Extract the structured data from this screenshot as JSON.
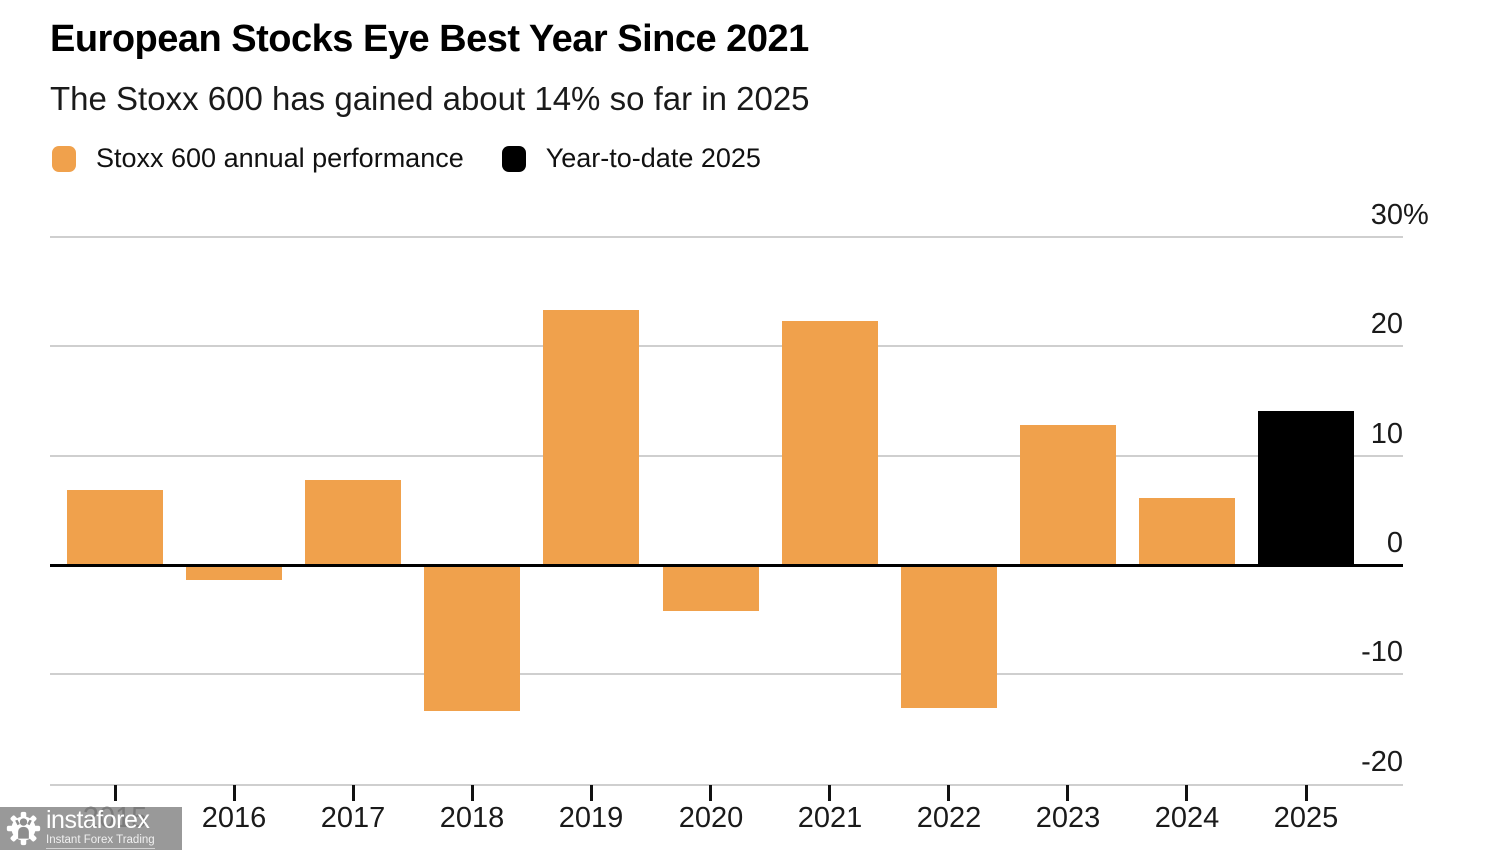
{
  "header": {
    "title": "European Stocks Eye Best Year Since 2021",
    "subtitle": "The Stoxx 600 has gained about 14% so far in 2025"
  },
  "chart_data": {
    "type": "bar",
    "title": "European Stocks Eye Best Year Since 2021",
    "subtitle": "The Stoxx 600 has gained about 14% so far in 2025",
    "categories": [
      "2015",
      "2016",
      "2017",
      "2018",
      "2019",
      "2020",
      "2021",
      "2022",
      "2023",
      "2024",
      "2025"
    ],
    "series": [
      {
        "name": "Stoxx 600 annual performance",
        "color": "#F0A14C",
        "values": [
          6.8,
          -1.2,
          7.7,
          -13.2,
          23.2,
          -4.0,
          22.2,
          -12.9,
          12.7,
          6.0,
          null
        ]
      },
      {
        "name": "Year-to-date 2025",
        "color": "#000000",
        "values": [
          null,
          null,
          null,
          null,
          null,
          null,
          null,
          null,
          null,
          null,
          14.0
        ]
      }
    ],
    "xlabel": "",
    "ylabel": "",
    "ylim": [
      -20,
      30
    ],
    "yticks": [
      {
        "value": 30,
        "label": "30%"
      },
      {
        "value": 20,
        "label": "20"
      },
      {
        "value": 10,
        "label": "10"
      },
      {
        "value": 0,
        "label": "0"
      },
      {
        "value": -10,
        "label": "-10"
      },
      {
        "value": -20,
        "label": "-20"
      }
    ],
    "grid": true,
    "legend_position": "top-left",
    "value_axis_side": "right",
    "baseline_value": 0
  },
  "legend": {
    "items": [
      {
        "label": "Stoxx 600 annual performance",
        "color": "#F0A14C"
      },
      {
        "label": "Year-to-date 2025",
        "color": "#000000"
      }
    ]
  },
  "watermark": {
    "brand": "instaforex",
    "tagline": "Instant Forex Trading"
  },
  "colors": {
    "annual_bar": "#F0A14C",
    "ytd_bar": "#000000",
    "gridline": "#CFCFCF",
    "zero_line": "#000000",
    "text": "#1A1A1A",
    "background": "#FFFFFF"
  }
}
